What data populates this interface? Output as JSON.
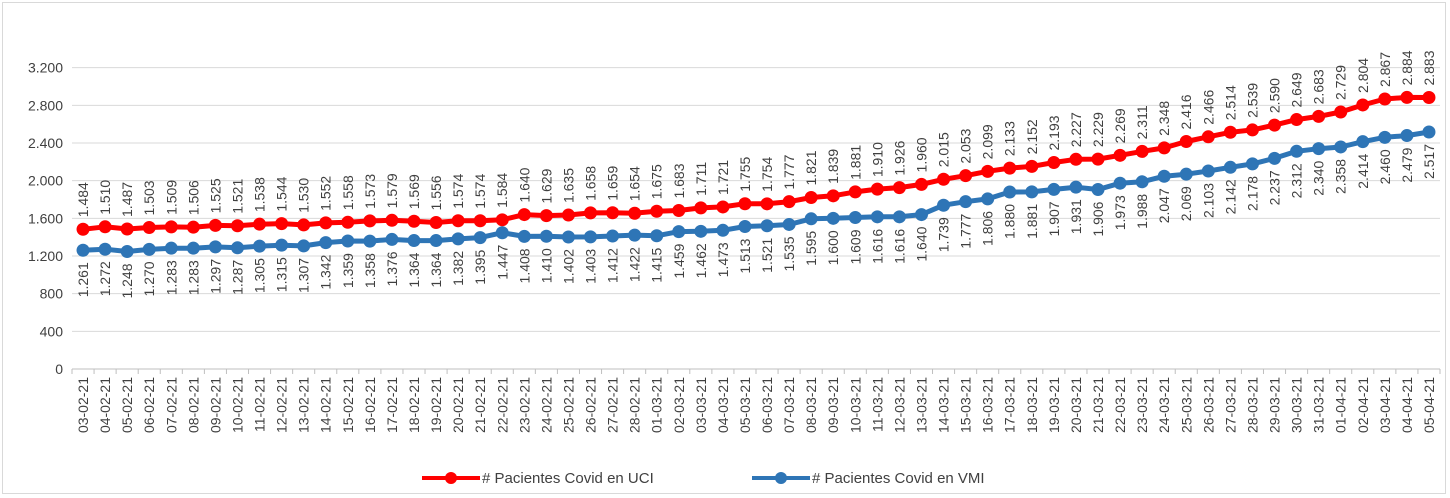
{
  "chart_data": {
    "type": "line",
    "title": "",
    "xlabel": "",
    "ylabel": "",
    "ylim": [
      0,
      3600
    ],
    "yticks": [
      0,
      400,
      800,
      1200,
      1600,
      2000,
      2400,
      2800,
      3200
    ],
    "ytick_labels": [
      "0",
      "400",
      "800",
      "1.200",
      "1.600",
      "2.000",
      "2.400",
      "2.800",
      "3.200"
    ],
    "grid": true,
    "legend_position": "bottom",
    "categories": [
      "03-02-21",
      "04-02-21",
      "05-02-21",
      "06-02-21",
      "07-02-21",
      "08-02-21",
      "09-02-21",
      "10-02-21",
      "11-02-21",
      "12-02-21",
      "13-02-21",
      "14-02-21",
      "15-02-21",
      "16-02-21",
      "17-02-21",
      "18-02-21",
      "19-02-21",
      "20-02-21",
      "21-02-21",
      "22-02-21",
      "23-02-21",
      "24-02-21",
      "25-02-21",
      "26-02-21",
      "27-02-21",
      "28-02-21",
      "01-03-21",
      "02-03-21",
      "03-03-21",
      "04-03-21",
      "05-03-21",
      "06-03-21",
      "07-03-21",
      "08-03-21",
      "09-03-21",
      "10-03-21",
      "11-03-21",
      "12-03-21",
      "13-03-21",
      "14-03-21",
      "15-03-21",
      "16-03-21",
      "17-03-21",
      "18-03-21",
      "19-03-21",
      "20-03-21",
      "21-03-21",
      "22-03-21",
      "23-03-21",
      "24-03-21",
      "25-03-21",
      "26-03-21",
      "27-03-21",
      "28-03-21",
      "29-03-21",
      "30-03-21",
      "31-03-21",
      "01-04-21",
      "02-04-21",
      "03-04-21",
      "04-04-21",
      "05-04-21"
    ],
    "series": [
      {
        "name": "# Pacientes Covid en UCI",
        "color": "#ff0000",
        "values": [
          1484,
          1510,
          1487,
          1503,
          1509,
          1506,
          1525,
          1521,
          1538,
          1544,
          1530,
          1552,
          1558,
          1573,
          1579,
          1569,
          1556,
          1574,
          1574,
          1584,
          1640,
          1629,
          1635,
          1658,
          1659,
          1654,
          1675,
          1683,
          1711,
          1721,
          1755,
          1754,
          1777,
          1821,
          1839,
          1881,
          1910,
          1926,
          1960,
          2015,
          2053,
          2099,
          2133,
          2152,
          2193,
          2227,
          2229,
          2269,
          2311,
          2348,
          2416,
          2466,
          2514,
          2539,
          2590,
          2649,
          2683,
          2729,
          2804,
          2867,
          2884,
          2883
        ],
        "labels": [
          "1.484",
          "1.510",
          "1.487",
          "1.503",
          "1.509",
          "1.506",
          "1.525",
          "1.521",
          "1.538",
          "1.544",
          "1.530",
          "1.552",
          "1.558",
          "1.573",
          "1.579",
          "1.569",
          "1.556",
          "1.574",
          "1.574",
          "1.584",
          "1.640",
          "1.629",
          "1.635",
          "1.658",
          "1.659",
          "1.654",
          "1.675",
          "1.683",
          "1.711",
          "1.721",
          "1.755",
          "1.754",
          "1.777",
          "1.821",
          "1.839",
          "1.881",
          "1.910",
          "1.926",
          "1.960",
          "2.015",
          "2.053",
          "2.099",
          "2.133",
          "2.152",
          "2.193",
          "2.227",
          "2.229",
          "2.269",
          "2.311",
          "2.348",
          "2.416",
          "2.466",
          "2.514",
          "2.539",
          "2.590",
          "2.649",
          "2.683",
          "2.729",
          "2.804",
          "2.867",
          "2.884",
          "2.883"
        ]
      },
      {
        "name": "# Pacientes Covid en VMI",
        "color": "#2e75b6",
        "values": [
          1261,
          1272,
          1248,
          1270,
          1283,
          1283,
          1297,
          1287,
          1305,
          1315,
          1307,
          1342,
          1359,
          1358,
          1376,
          1364,
          1364,
          1382,
          1395,
          1447,
          1408,
          1410,
          1402,
          1403,
          1412,
          1422,
          1415,
          1459,
          1462,
          1473,
          1513,
          1521,
          1535,
          1595,
          1600,
          1609,
          1616,
          1616,
          1640,
          1739,
          1777,
          1806,
          1880,
          1881,
          1907,
          1931,
          1906,
          1973,
          1988,
          2047,
          2069,
          2103,
          2142,
          2178,
          2237,
          2312,
          2340,
          2358,
          2414,
          2460,
          2479,
          2517
        ],
        "labels": [
          "1.261",
          "1.272",
          "1.248",
          "1.270",
          "1.283",
          "1.283",
          "1.297",
          "1.287",
          "1.305",
          "1.315",
          "1.307",
          "1.342",
          "1.359",
          "1.358",
          "1.376",
          "1.364",
          "1.364",
          "1.382",
          "1.395",
          "1.447",
          "1.408",
          "1.410",
          "1.402",
          "1.403",
          "1.412",
          "1.422",
          "1.415",
          "1.459",
          "1.462",
          "1.473",
          "1.513",
          "1.521",
          "1.535",
          "1.595",
          "1.600",
          "1.609",
          "1.616",
          "1.616",
          "1.640",
          "1.739",
          "1.777",
          "1.806",
          "1.880",
          "1.881",
          "1.907",
          "1.931",
          "1.906",
          "1.973",
          "1.988",
          "2.047",
          "2.069",
          "2.103",
          "2.142",
          "2.178",
          "2.237",
          "2.312",
          "2.340",
          "2.358",
          "2.414",
          "2.460",
          "2.479",
          "2.517"
        ]
      }
    ]
  }
}
